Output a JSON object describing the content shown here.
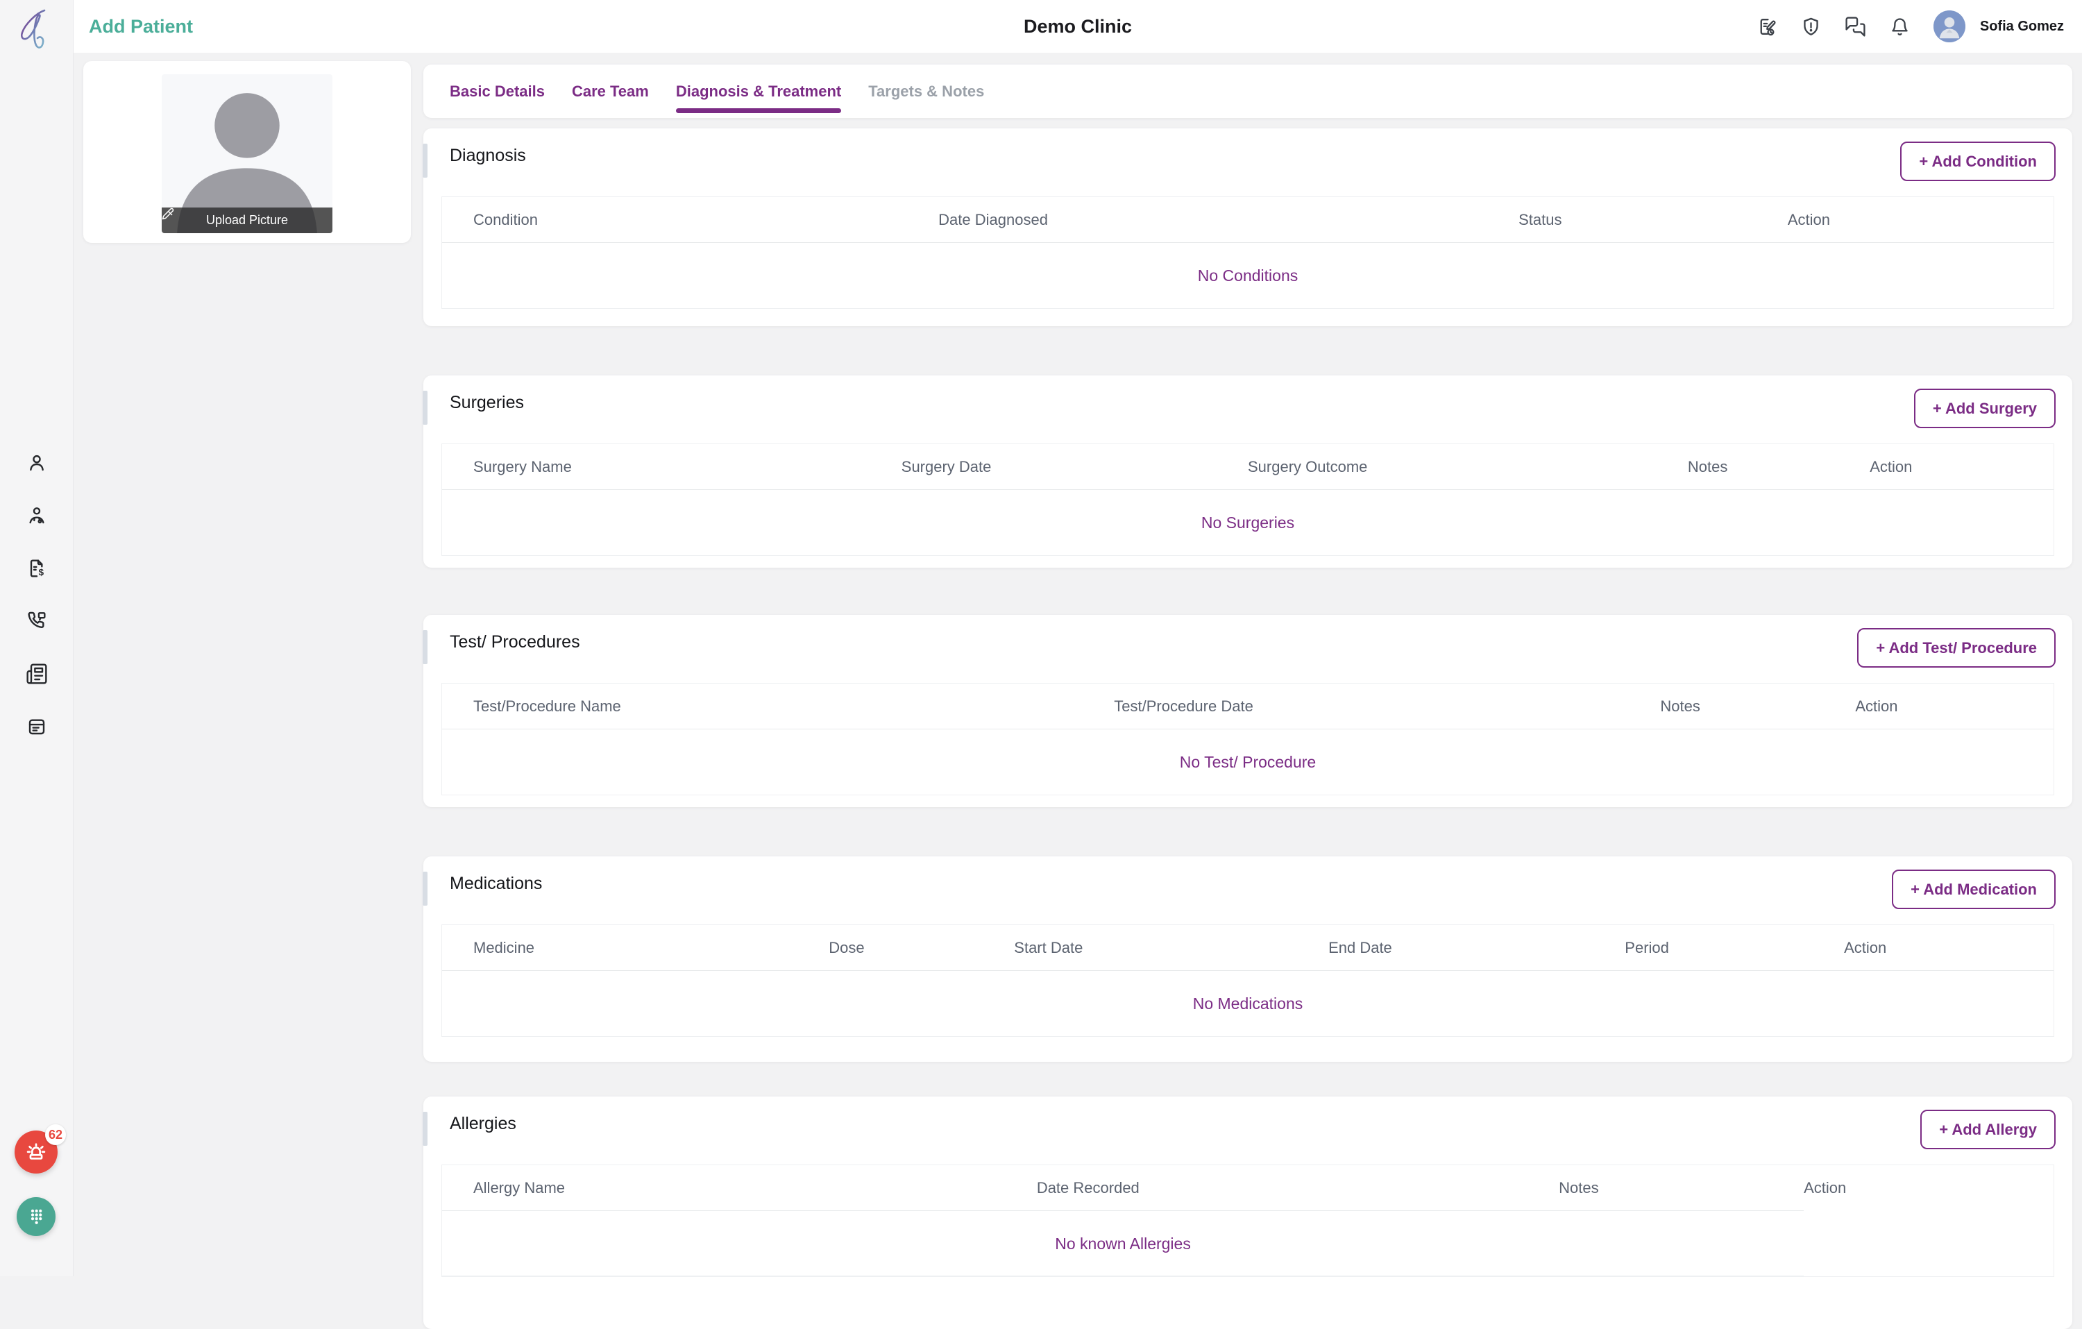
{
  "header": {
    "page_title": "Add Patient",
    "clinic_name": "Demo Clinic",
    "user_name": "Sofia Gomez",
    "icons": [
      "prescription-note-icon",
      "shield-alert-icon",
      "messages-icon",
      "notifications-bell-icon"
    ]
  },
  "sidebar": {
    "icons": [
      "patient-icon",
      "doctor-icon",
      "billing-document-icon",
      "phone-message-icon",
      "newspaper-icon",
      "calendar-icon"
    ],
    "alert_badge": "62"
  },
  "profile": {
    "upload_label": "Upload Picture"
  },
  "tabs": [
    {
      "label": "Basic Details",
      "state": "normal"
    },
    {
      "label": "Care Team",
      "state": "normal"
    },
    {
      "label": "Diagnosis & Treatment",
      "state": "active"
    },
    {
      "label": "Targets & Notes",
      "state": "disabled"
    }
  ],
  "sections": [
    {
      "title": "Diagnosis",
      "add_button": "+ Add Condition",
      "columns": [
        "Condition",
        "Date Diagnosed",
        "Status",
        "Action"
      ],
      "empty_text": "No Conditions"
    },
    {
      "title": "Surgeries",
      "add_button": "+ Add Surgery",
      "columns": [
        "Surgery Name",
        "Surgery Date",
        "Surgery Outcome",
        "Notes",
        "Action"
      ],
      "empty_text": "No Surgeries"
    },
    {
      "title": "Test/ Procedures",
      "add_button": "+ Add Test/ Procedure",
      "columns": [
        "Test/Procedure Name",
        "Test/Procedure Date",
        "Notes",
        "Action"
      ],
      "empty_text": "No Test/ Procedure"
    },
    {
      "title": "Medications",
      "add_button": "+ Add Medication",
      "columns": [
        "Medicine",
        "Dose",
        "Start Date",
        "End Date",
        "Period",
        "Action"
      ],
      "empty_text": "No Medications"
    },
    {
      "title": "Allergies",
      "add_button": "+ Add Allergy",
      "columns": [
        "Allergy Name",
        "Date Recorded",
        "Notes",
        "Action"
      ],
      "empty_text": "No known Allergies"
    }
  ],
  "colors": {
    "accent_purple": "#7b2c85",
    "title_teal": "#4bae99",
    "alert_red": "#e8483f",
    "dialpad_teal": "#4aa792",
    "avatar_blue": "#7e97c9",
    "table_header_gray": "#5c6370",
    "background": "#f2f2f3"
  }
}
